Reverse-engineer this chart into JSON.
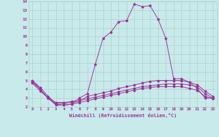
{
  "xlabel": "Windchill (Refroidissement éolien,°C)",
  "background_color": "#c8eaea",
  "grid_color": "#b0cccc",
  "line_color": "#993399",
  "xlim": [
    -0.5,
    23.5
  ],
  "ylim": [
    2,
    14
  ],
  "xticks": [
    0,
    1,
    2,
    3,
    4,
    5,
    6,
    7,
    8,
    9,
    10,
    11,
    12,
    13,
    14,
    15,
    16,
    17,
    18,
    19,
    20,
    21,
    22,
    23
  ],
  "yticks": [
    2,
    3,
    4,
    5,
    6,
    7,
    8,
    9,
    10,
    11,
    12,
    13,
    14
  ],
  "series": [
    [
      5.0,
      4.0,
      3.0,
      2.2,
      2.2,
      2.3,
      3.0,
      3.5,
      6.8,
      9.8,
      10.5,
      11.7,
      11.8,
      13.7,
      13.4,
      13.5,
      12.0,
      9.8,
      5.2,
      5.2,
      4.8,
      4.1,
      3.0,
      3.0
    ],
    [
      5.0,
      4.2,
      3.2,
      2.4,
      2.4,
      2.5,
      2.6,
      3.2,
      3.4,
      3.6,
      3.8,
      4.1,
      4.3,
      4.5,
      4.7,
      4.9,
      5.0,
      5.0,
      5.0,
      5.0,
      4.8,
      4.5,
      3.8,
      3.2
    ],
    [
      4.8,
      4.0,
      3.0,
      2.5,
      2.5,
      2.6,
      2.8,
      2.9,
      3.1,
      3.3,
      3.5,
      3.7,
      3.9,
      4.1,
      4.3,
      4.4,
      4.5,
      4.6,
      4.6,
      4.6,
      4.5,
      4.3,
      3.5,
      3.0
    ],
    [
      4.7,
      3.8,
      3.0,
      2.3,
      2.2,
      2.3,
      2.5,
      2.7,
      2.9,
      3.1,
      3.3,
      3.5,
      3.7,
      3.9,
      4.1,
      4.2,
      4.3,
      4.3,
      4.3,
      4.3,
      4.1,
      3.9,
      3.2,
      2.9
    ]
  ]
}
